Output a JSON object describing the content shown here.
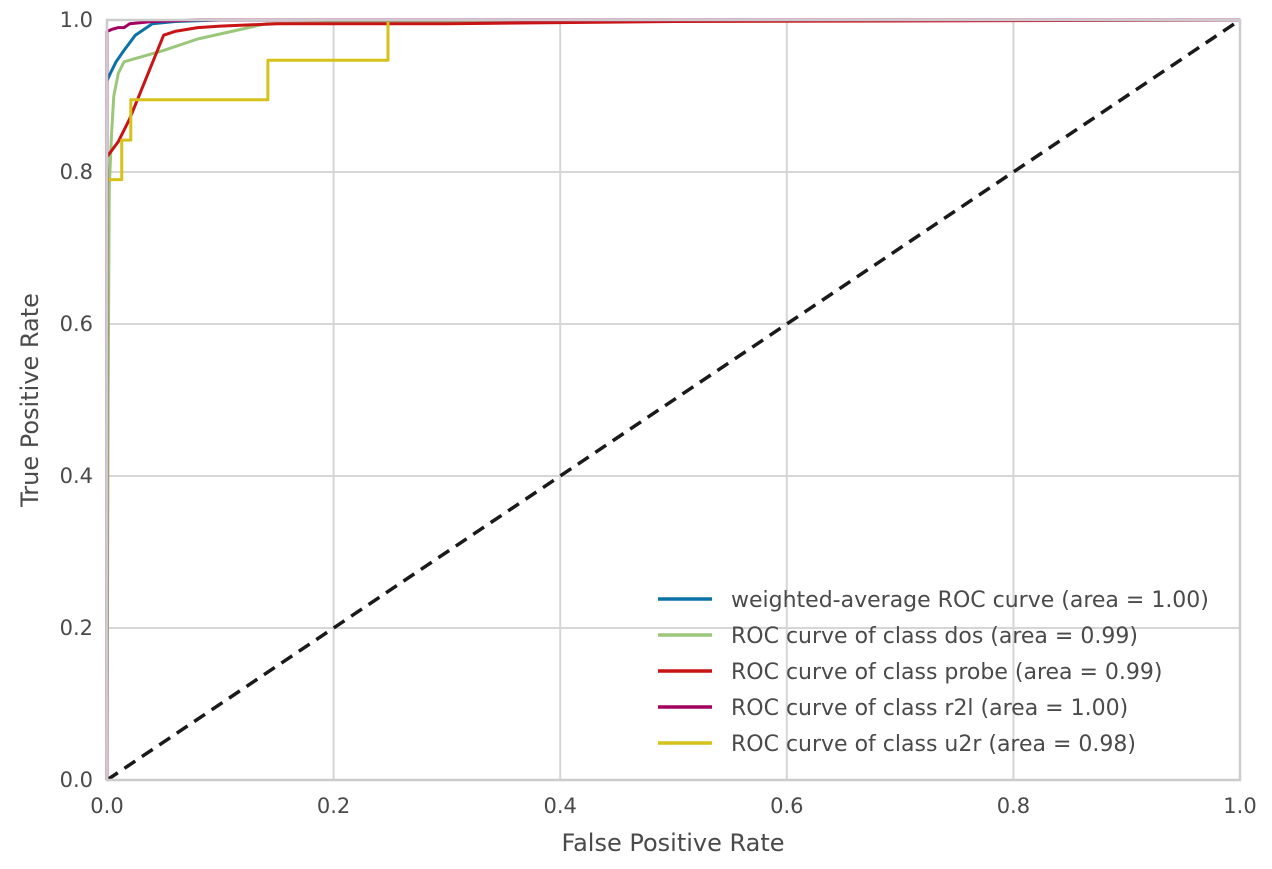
{
  "chart_data": {
    "type": "line",
    "title": "",
    "xlabel": "False Positive Rate",
    "ylabel": "True Positive Rate",
    "xlim": [
      0.0,
      1.0
    ],
    "ylim": [
      0.0,
      1.0
    ],
    "grid": true,
    "legend_position": "bottom-right",
    "x_ticks": [
      "0.0",
      "0.2",
      "0.4",
      "0.6",
      "0.8",
      "1.0"
    ],
    "y_ticks": [
      "0.0",
      "0.2",
      "0.4",
      "0.6",
      "0.8",
      "1.0"
    ],
    "series": [
      {
        "name": "weighted-average ROC curve (area = 1.00)",
        "color": "#0b72a8",
        "x": [
          0.0,
          0.0,
          0.003,
          0.008,
          0.015,
          0.025,
          0.04,
          0.06,
          0.1,
          0.2,
          1.0
        ],
        "y": [
          0.0,
          0.92,
          0.93,
          0.945,
          0.96,
          0.98,
          0.995,
          0.998,
          1.0,
          1.0,
          1.0
        ]
      },
      {
        "name": "ROC curve of class dos (area = 0.99)",
        "color": "#9ac77a",
        "x": [
          0.0,
          0.001,
          0.002,
          0.004,
          0.006,
          0.01,
          0.015,
          0.05,
          0.08,
          0.14,
          0.3,
          1.0
        ],
        "y": [
          0.0,
          0.5,
          0.78,
          0.85,
          0.9,
          0.93,
          0.945,
          0.96,
          0.975,
          0.995,
          0.998,
          1.0
        ]
      },
      {
        "name": "ROC curve of class probe (area = 0.99)",
        "color": "#c81414",
        "x": [
          0.0,
          0.0,
          0.0,
          0.01,
          0.02,
          0.05,
          0.06,
          0.08,
          0.1,
          0.15,
          0.3,
          0.5,
          1.0
        ],
        "y": [
          0.0,
          0.8,
          0.82,
          0.84,
          0.87,
          0.98,
          0.985,
          0.99,
          0.992,
          0.995,
          0.995,
          0.998,
          1.0
        ]
      },
      {
        "name": "ROC curve of class r2l (area = 1.00)",
        "color": "#a3005f",
        "x": [
          0.0,
          0.0,
          0.005,
          0.01,
          0.015,
          0.02,
          0.04,
          0.08,
          0.25,
          1.0
        ],
        "y": [
          0.0,
          0.985,
          0.988,
          0.99,
          0.99,
          0.995,
          0.998,
          1.0,
          1.0,
          1.0
        ]
      },
      {
        "name": "ROC curve of class u2r (area = 0.98)",
        "color": "#d6c21a",
        "x": [
          0.0,
          0.0,
          0.013,
          0.013,
          0.021,
          0.021,
          0.142,
          0.142,
          0.248,
          0.248,
          1.0
        ],
        "y": [
          0.0,
          0.79,
          0.79,
          0.842,
          0.842,
          0.895,
          0.895,
          0.947,
          0.947,
          1.0,
          1.0
        ]
      },
      {
        "name": "chance",
        "color": "#1a1a1a",
        "dashed": true,
        "show_in_legend": false,
        "x": [
          0.0,
          1.0
        ],
        "y": [
          0.0,
          1.0
        ]
      }
    ]
  }
}
